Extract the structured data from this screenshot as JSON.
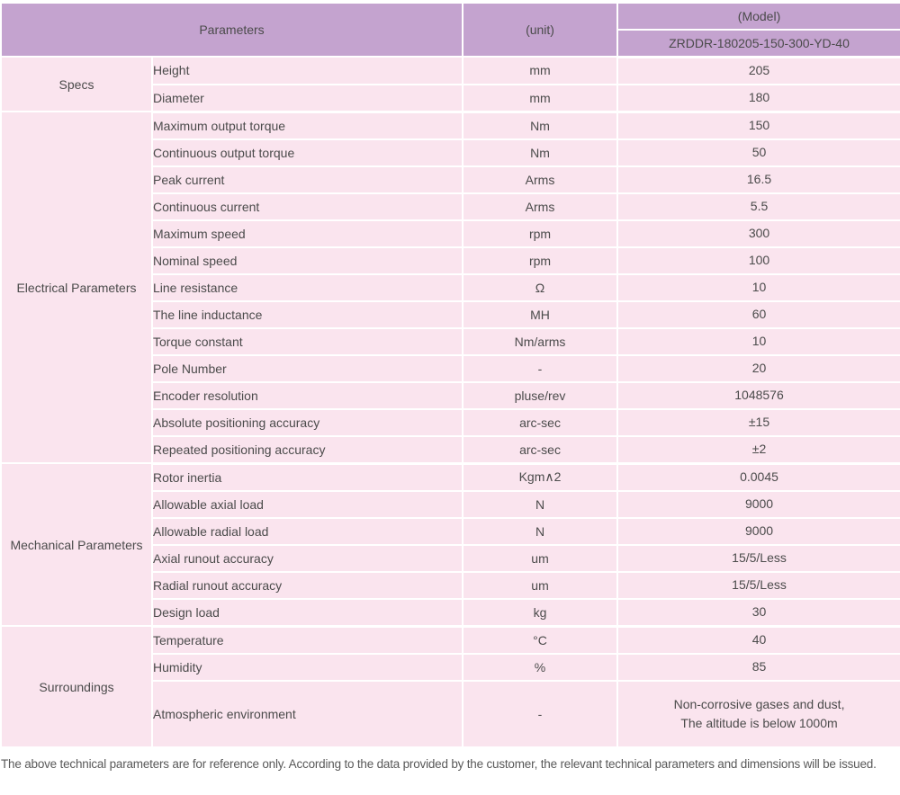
{
  "colors": {
    "header_bg": "#c4a3cf",
    "row_bg": "#fae4ee",
    "border": "#ffffff",
    "text": "#4b4b4b"
  },
  "header": {
    "parameters_label": "Parameters",
    "unit_label": "(unit)",
    "model_label": "(Model)",
    "model_code": "ZRDDR-180205-150-300-YD-40"
  },
  "groups": [
    {
      "name": "Specs",
      "rows": [
        {
          "label": "Height",
          "unit": "mm",
          "value": "205"
        },
        {
          "label": "Diameter",
          "unit": "mm",
          "value": "180"
        }
      ]
    },
    {
      "name": "Electrical Parameters",
      "rows": [
        {
          "label": "Maximum output torque",
          "unit": "Nm",
          "value": "150"
        },
        {
          "label": "Continuous output torque",
          "unit": "Nm",
          "value": "50"
        },
        {
          "label": "Peak current",
          "unit": "Arms",
          "value": "16.5"
        },
        {
          "label": "Continuous current",
          "unit": "Arms",
          "value": "5.5"
        },
        {
          "label": "Maximum speed",
          "unit": "rpm",
          "value": "300"
        },
        {
          "label": "Nominal speed",
          "unit": "rpm",
          "value": "100"
        },
        {
          "label": "Line resistance",
          "unit": "Ω",
          "value": "10"
        },
        {
          "label": "The line inductance",
          "unit": "MH",
          "value": "60"
        },
        {
          "label": "Torque constant",
          "unit": "Nm/arms",
          "value": "10"
        },
        {
          "label": "Pole Number",
          "unit": "-",
          "value": "20"
        },
        {
          "label": "Encoder resolution",
          "unit": "pluse/rev",
          "value": "1048576"
        },
        {
          "label": "Absolute positioning accuracy",
          "unit": "arc-sec",
          "value": "±15"
        },
        {
          "label": "Repeated positioning accuracy",
          "unit": "arc-sec",
          "value": "±2"
        }
      ]
    },
    {
      "name": "Mechanical Parameters",
      "rows": [
        {
          "label": "Rotor inertia",
          "unit": "Kgm∧2",
          "value": "0.0045"
        },
        {
          "label": "Allowable axial load",
          "unit": "N",
          "value": "9000"
        },
        {
          "label": "Allowable radial load",
          "unit": "N",
          "value": "9000"
        },
        {
          "label": "Axial runout accuracy",
          "unit": "um",
          "value": "15/5/Less"
        },
        {
          "label": "Radial runout accuracy",
          "unit": "um",
          "value": "15/5/Less"
        },
        {
          "label": "Design load",
          "unit": "kg",
          "value": "30"
        }
      ]
    },
    {
      "name": "Surroundings",
      "rows": [
        {
          "label": "Temperature",
          "unit": "°C",
          "value": "40"
        },
        {
          "label": "Humidity",
          "unit": "%",
          "value": "85"
        },
        {
          "label": "Atmospheric environment",
          "unit": "-",
          "value": "Non-corrosive gases and dust,\nThe altitude is below 1000m",
          "tall": true
        }
      ]
    }
  ],
  "footer": {
    "note": "The above technical parameters are for reference only. According to the data provided by the customer, the relevant technical parameters and dimensions will be issued."
  }
}
